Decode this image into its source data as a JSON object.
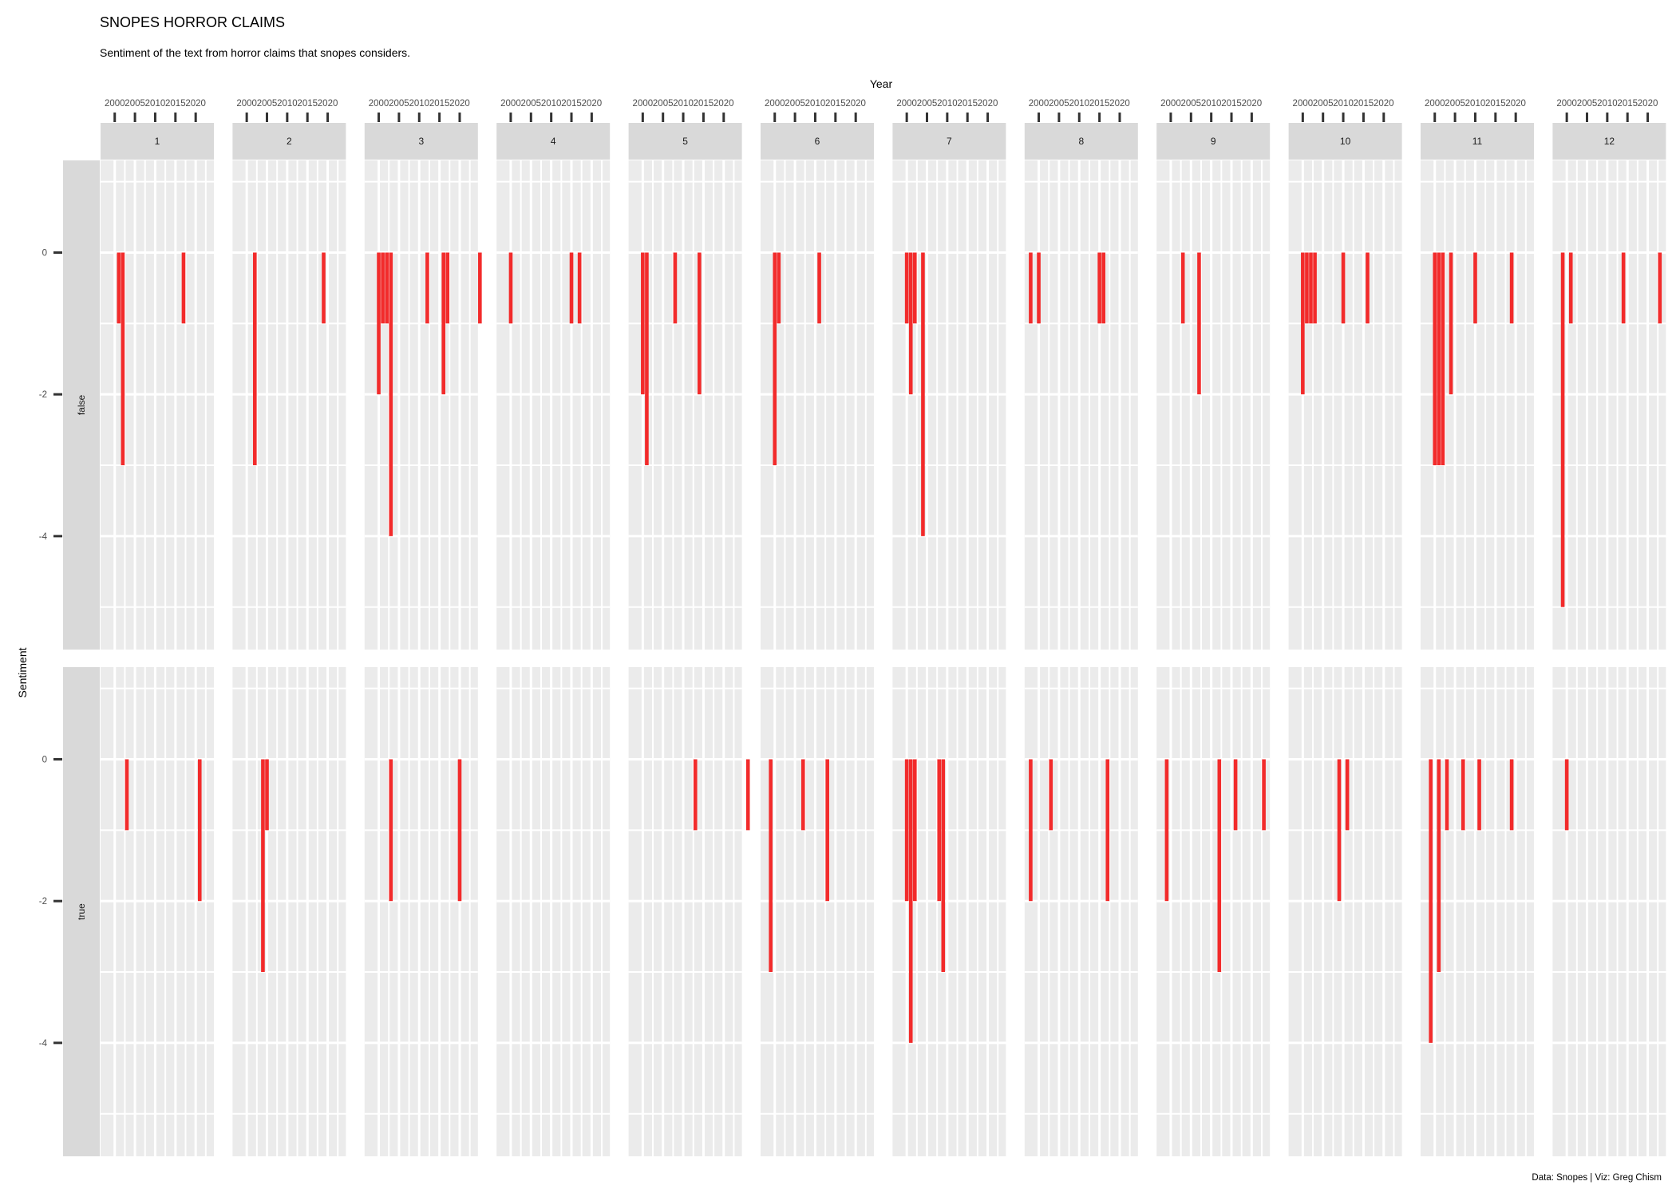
{
  "chart_data": {
    "type": "bar",
    "title": "SNOPES HORROR CLAIMS",
    "subtitle": "Sentiment of the text from horror claims that snopes considers.",
    "caption": "Data: Snopes | Viz: Greg Chism",
    "xlabel": "Year",
    "ylabel": "Sentiment",
    "x_ticks": [
      2000,
      2005,
      2010,
      2015,
      2020
    ],
    "xlim": [
      1996.5,
      2024.5
    ],
    "y_ticks": [
      0,
      -2,
      -4
    ],
    "ylim": [
      -5.6,
      1.3
    ],
    "grid": true,
    "bar_color": "#f22b2b",
    "columns": [
      "1",
      "2",
      "3",
      "4",
      "5",
      "6",
      "7",
      "8",
      "9",
      "10",
      "11",
      "12"
    ],
    "rows": [
      "false",
      "true"
    ],
    "panels": {
      "false": [
        [
          {
            "x": 2001,
            "y": -1
          },
          {
            "x": 2002,
            "y": -3
          },
          {
            "x": 2017,
            "y": -1
          }
        ],
        [
          {
            "x": 2002,
            "y": -3
          },
          {
            "x": 2019,
            "y": -1
          }
        ],
        [
          {
            "x": 2000,
            "y": -2
          },
          {
            "x": 2001,
            "y": -1
          },
          {
            "x": 2002,
            "y": -1
          },
          {
            "x": 2003,
            "y": -4
          },
          {
            "x": 2012,
            "y": -1
          },
          {
            "x": 2016,
            "y": -2
          },
          {
            "x": 2017,
            "y": -1
          },
          {
            "x": 2025,
            "y": -1
          }
        ],
        [
          {
            "x": 2000,
            "y": -1
          },
          {
            "x": 2015,
            "y": -1
          },
          {
            "x": 2017,
            "y": -1
          }
        ],
        [
          {
            "x": 2000,
            "y": -2
          },
          {
            "x": 2001,
            "y": -3
          },
          {
            "x": 2008,
            "y": -1
          },
          {
            "x": 2014,
            "y": -2
          }
        ],
        [
          {
            "x": 2000,
            "y": -3
          },
          {
            "x": 2001,
            "y": -1
          },
          {
            "x": 2011,
            "y": -1
          }
        ],
        [
          {
            "x": 2000,
            "y": -1
          },
          {
            "x": 2001,
            "y": -2
          },
          {
            "x": 2002,
            "y": -1
          },
          {
            "x": 2004,
            "y": -4
          }
        ],
        [
          {
            "x": 1998,
            "y": -1
          },
          {
            "x": 2000,
            "y": -1
          },
          {
            "x": 2015,
            "y": -1
          },
          {
            "x": 2016,
            "y": -1
          }
        ],
        [
          {
            "x": 2003,
            "y": -1
          },
          {
            "x": 2007,
            "y": -2
          }
        ],
        [
          {
            "x": 2000,
            "y": -2
          },
          {
            "x": 2001,
            "y": -1
          },
          {
            "x": 2002,
            "y": -1
          },
          {
            "x": 2003,
            "y": -1
          },
          {
            "x": 2010,
            "y": -1
          },
          {
            "x": 2016,
            "y": -1
          }
        ],
        [
          {
            "x": 2000,
            "y": -3
          },
          {
            "x": 2001,
            "y": -3
          },
          {
            "x": 2002,
            "y": -3
          },
          {
            "x": 2004,
            "y": -2
          },
          {
            "x": 2010,
            "y": -1
          },
          {
            "x": 2019,
            "y": -1
          }
        ],
        [
          {
            "x": 1999,
            "y": -5
          },
          {
            "x": 2001,
            "y": -1
          },
          {
            "x": 2014,
            "y": -1
          },
          {
            "x": 2023,
            "y": -1
          }
        ]
      ],
      "true": [
        [
          {
            "x": 2003,
            "y": -1
          },
          {
            "x": 2021,
            "y": -2
          }
        ],
        [
          {
            "x": 2004,
            "y": -3
          },
          {
            "x": 2005,
            "y": -1
          }
        ],
        [
          {
            "x": 2003,
            "y": -2
          },
          {
            "x": 2020,
            "y": -2
          }
        ],
        [],
        [
          {
            "x": 2013,
            "y": -1
          },
          {
            "x": 2026,
            "y": -1
          }
        ],
        [
          {
            "x": 1999,
            "y": -3
          },
          {
            "x": 2007,
            "y": -1
          },
          {
            "x": 2013,
            "y": -2
          }
        ],
        [
          {
            "x": 2000,
            "y": -2
          },
          {
            "x": 2001,
            "y": -4
          },
          {
            "x": 2002,
            "y": -2
          },
          {
            "x": 2008,
            "y": -2
          },
          {
            "x": 2009,
            "y": -3
          }
        ],
        [
          {
            "x": 1998,
            "y": -2
          },
          {
            "x": 2003,
            "y": -1
          },
          {
            "x": 2017,
            "y": -2
          }
        ],
        [
          {
            "x": 1999,
            "y": -2
          },
          {
            "x": 2012,
            "y": -3
          },
          {
            "x": 2016,
            "y": -1
          },
          {
            "x": 2023,
            "y": -1
          }
        ],
        [
          {
            "x": 2009,
            "y": -2
          },
          {
            "x": 2011,
            "y": -1
          }
        ],
        [
          {
            "x": 1999,
            "y": -4
          },
          {
            "x": 2001,
            "y": -3
          },
          {
            "x": 2003,
            "y": -1
          },
          {
            "x": 2007,
            "y": -1
          },
          {
            "x": 2011,
            "y": -1
          },
          {
            "x": 2019,
            "y": -1
          }
        ],
        [
          {
            "x": 2000,
            "y": -1
          }
        ]
      ]
    }
  }
}
